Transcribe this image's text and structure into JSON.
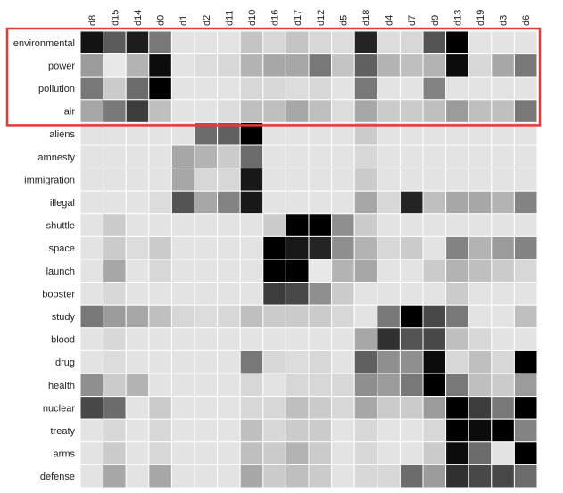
{
  "chart_data": {
    "type": "heatmap",
    "title": "",
    "xlabel": "",
    "ylabel": "",
    "columns": [
      "d8",
      "d15",
      "d14",
      "d0",
      "d1",
      "d2",
      "d11",
      "d10",
      "d16",
      "d17",
      "d12",
      "d5",
      "d18",
      "d4",
      "d7",
      "d9",
      "d13",
      "d19",
      "d3",
      "d6"
    ],
    "rows": [
      "environmental",
      "power",
      "pollution",
      "air",
      "aliens",
      "amnesty",
      "immigration",
      "illegal",
      "shuttle",
      "space",
      "launch",
      "booster",
      "study",
      "blood",
      "drug",
      "health",
      "nuclear",
      "treaty",
      "arms",
      "defense"
    ],
    "value_range": [
      0,
      1
    ],
    "color_scale": {
      "low": "#efefef",
      "high": "#000000"
    },
    "grid_line_color": "#ffffff",
    "values": [
      [
        0.92,
        0.62,
        0.88,
        0.5,
        0.05,
        0.05,
        0.05,
        0.18,
        0.1,
        0.18,
        0.1,
        0.08,
        0.85,
        0.08,
        0.1,
        0.65,
        1.0,
        0.05,
        0.05,
        0.05
      ],
      [
        0.35,
        0.03,
        0.25,
        0.95,
        0.05,
        0.08,
        0.1,
        0.25,
        0.3,
        0.3,
        0.5,
        0.18,
        0.6,
        0.25,
        0.2,
        0.25,
        0.95,
        0.1,
        0.3,
        0.5
      ],
      [
        0.5,
        0.15,
        0.55,
        1.0,
        0.05,
        0.05,
        0.05,
        0.1,
        0.1,
        0.08,
        0.1,
        0.05,
        0.5,
        0.05,
        0.05,
        0.45,
        0.05,
        0.05,
        0.05,
        0.05
      ],
      [
        0.3,
        0.5,
        0.75,
        0.2,
        0.05,
        0.05,
        0.08,
        0.2,
        0.2,
        0.3,
        0.2,
        0.08,
        0.3,
        0.15,
        0.15,
        0.2,
        0.35,
        0.2,
        0.2,
        0.5
      ],
      [
        0.05,
        0.05,
        0.05,
        0.05,
        0.05,
        0.55,
        0.6,
        1.0,
        0.05,
        0.05,
        0.05,
        0.05,
        0.15,
        0.05,
        0.05,
        0.05,
        0.05,
        0.05,
        0.05,
        0.05
      ],
      [
        0.05,
        0.05,
        0.05,
        0.05,
        0.3,
        0.25,
        0.15,
        0.55,
        0.05,
        0.05,
        0.05,
        0.05,
        0.1,
        0.05,
        0.05,
        0.05,
        0.05,
        0.05,
        0.05,
        0.05
      ],
      [
        0.05,
        0.05,
        0.05,
        0.05,
        0.3,
        0.1,
        0.1,
        0.9,
        0.05,
        0.05,
        0.05,
        0.05,
        0.15,
        0.05,
        0.05,
        0.05,
        0.05,
        0.05,
        0.05,
        0.05
      ],
      [
        0.05,
        0.05,
        0.05,
        0.08,
        0.65,
        0.3,
        0.45,
        0.9,
        0.05,
        0.05,
        0.05,
        0.05,
        0.3,
        0.1,
        0.85,
        0.2,
        0.3,
        0.3,
        0.25,
        0.45
      ],
      [
        0.05,
        0.15,
        0.05,
        0.05,
        0.05,
        0.05,
        0.05,
        0.05,
        0.15,
        1.0,
        1.0,
        0.4,
        0.15,
        0.05,
        0.05,
        0.05,
        0.05,
        0.05,
        0.05,
        0.05
      ],
      [
        0.05,
        0.15,
        0.08,
        0.15,
        0.05,
        0.05,
        0.05,
        0.05,
        1.0,
        0.9,
        0.85,
        0.4,
        0.25,
        0.1,
        0.15,
        0.05,
        0.45,
        0.25,
        0.35,
        0.45
      ],
      [
        0.05,
        0.3,
        0.05,
        0.1,
        0.05,
        0.05,
        0.05,
        0.05,
        1.0,
        1.0,
        0.03,
        0.25,
        0.3,
        0.05,
        0.05,
        0.15,
        0.25,
        0.2,
        0.15,
        0.1
      ],
      [
        0.05,
        0.1,
        0.05,
        0.05,
        0.05,
        0.05,
        0.05,
        0.05,
        0.75,
        0.7,
        0.4,
        0.15,
        0.05,
        0.05,
        0.05,
        0.05,
        0.15,
        0.05,
        0.05,
        0.05
      ],
      [
        0.5,
        0.35,
        0.3,
        0.2,
        0.1,
        0.08,
        0.1,
        0.2,
        0.15,
        0.15,
        0.15,
        0.1,
        0.05,
        0.5,
        1.0,
        0.7,
        0.5,
        0.05,
        0.05,
        0.2
      ],
      [
        0.05,
        0.1,
        0.05,
        0.05,
        0.05,
        0.05,
        0.05,
        0.05,
        0.05,
        0.05,
        0.05,
        0.05,
        0.3,
        0.8,
        0.65,
        0.7,
        0.2,
        0.1,
        0.05,
        0.05
      ],
      [
        0.05,
        0.08,
        0.05,
        0.05,
        0.05,
        0.05,
        0.05,
        0.5,
        0.1,
        0.08,
        0.1,
        0.05,
        0.6,
        0.4,
        0.4,
        0.95,
        0.1,
        0.2,
        0.1,
        1.0
      ],
      [
        0.4,
        0.15,
        0.25,
        0.05,
        0.05,
        0.05,
        0.05,
        0.1,
        0.05,
        0.1,
        0.1,
        0.1,
        0.4,
        0.35,
        0.5,
        1.0,
        0.5,
        0.2,
        0.15,
        0.35
      ],
      [
        0.7,
        0.55,
        0.05,
        0.15,
        0.05,
        0.05,
        0.05,
        0.1,
        0.1,
        0.2,
        0.15,
        0.1,
        0.3,
        0.15,
        0.15,
        0.35,
        1.0,
        0.75,
        0.5,
        1.0
      ],
      [
        0.05,
        0.1,
        0.05,
        0.1,
        0.05,
        0.05,
        0.05,
        0.2,
        0.1,
        0.15,
        0.15,
        0.05,
        0.1,
        0.05,
        0.05,
        0.1,
        1.0,
        0.95,
        1.0,
        0.45
      ],
      [
        0.05,
        0.15,
        0.05,
        0.1,
        0.05,
        0.05,
        0.05,
        0.2,
        0.15,
        0.25,
        0.15,
        0.05,
        0.1,
        0.05,
        0.05,
        0.15,
        0.95,
        0.55,
        0.05,
        1.0
      ],
      [
        0.05,
        0.3,
        0.05,
        0.3,
        0.05,
        0.05,
        0.05,
        0.3,
        0.15,
        0.2,
        0.15,
        0.05,
        0.1,
        0.1,
        0.55,
        0.35,
        0.8,
        0.7,
        0.7,
        0.55
      ]
    ],
    "highlight": {
      "rows": [
        "environmental",
        "power",
        "pollution",
        "air"
      ],
      "columns": [
        "d8",
        "d6"
      ],
      "color": "#e53935"
    }
  }
}
